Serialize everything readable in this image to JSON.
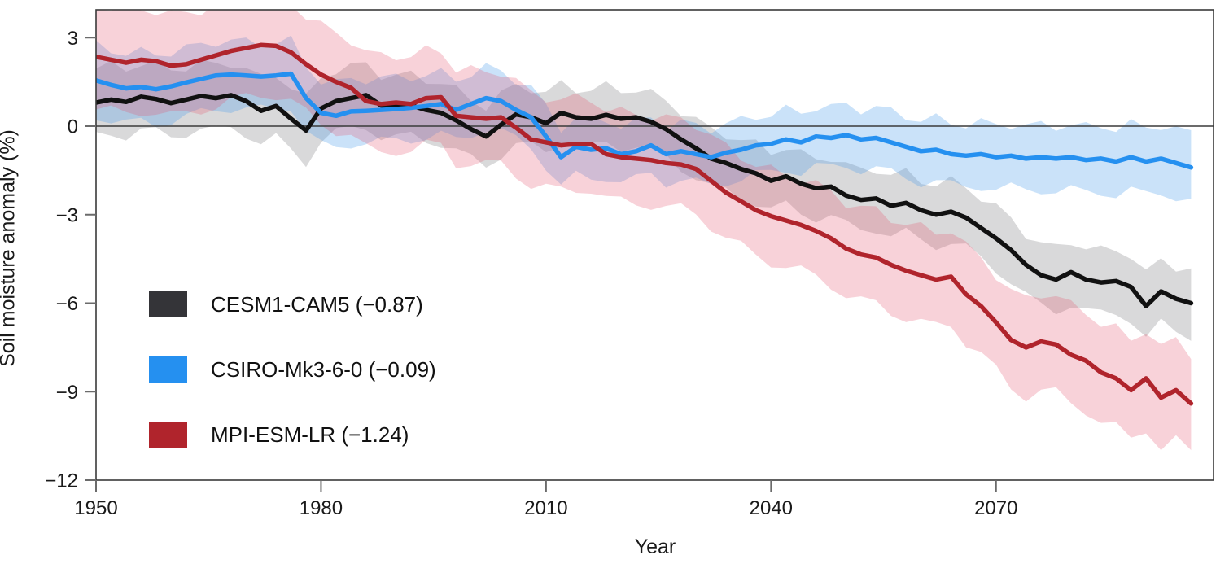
{
  "chart_data": {
    "type": "line",
    "title": "",
    "xlabel": "Year",
    "ylabel": "Soil moisture anomaly (%)",
    "grid": false,
    "zero_line": true,
    "legend_position": "lower-left",
    "x_range": [
      1950,
      2099
    ],
    "y_range": [
      -12,
      3.95
    ],
    "x_ticks": [
      {
        "v": 1950,
        "label": "1950"
      },
      {
        "v": 1980,
        "label": "1980"
      },
      {
        "v": 2010,
        "label": "2010"
      },
      {
        "v": 2040,
        "label": "2040"
      },
      {
        "v": 2070,
        "label": "2070"
      }
    ],
    "y_ticks": [
      {
        "v": 3,
        "label": "3"
      },
      {
        "v": 0,
        "label": "0"
      },
      {
        "v": -3,
        "label": "−3"
      },
      {
        "v": -6,
        "label": "−6"
      },
      {
        "v": -9,
        "label": "−9"
      },
      {
        "v": -12,
        "label": "−12"
      }
    ],
    "years": [
      1950,
      1952,
      1954,
      1956,
      1958,
      1960,
      1962,
      1964,
      1966,
      1968,
      1970,
      1972,
      1974,
      1976,
      1978,
      1980,
      1982,
      1984,
      1986,
      1988,
      1990,
      1992,
      1994,
      1996,
      1998,
      2000,
      2002,
      2004,
      2006,
      2008,
      2010,
      2012,
      2014,
      2016,
      2018,
      2020,
      2022,
      2024,
      2026,
      2028,
      2030,
      2032,
      2034,
      2036,
      2038,
      2040,
      2042,
      2044,
      2046,
      2048,
      2050,
      2052,
      2054,
      2056,
      2058,
      2060,
      2062,
      2064,
      2066,
      2068,
      2070,
      2072,
      2074,
      2076,
      2078,
      2080,
      2082,
      2084,
      2086,
      2088,
      2090,
      2092,
      2094,
      2096
    ],
    "series": [
      {
        "name": "CESM1-CAM5",
        "label": "CESM1-CAM5 (−0.87)",
        "trend": -0.87,
        "line_color": "#111111",
        "swatch_color": "#343438",
        "band_color": "rgba(80,80,85,0.22)",
        "values": [
          0.8,
          0.9,
          0.82,
          1.0,
          0.92,
          0.78,
          0.9,
          1.02,
          0.95,
          1.05,
          0.85,
          0.52,
          0.68,
          0.25,
          -0.15,
          0.6,
          0.85,
          0.95,
          1.05,
          0.7,
          0.65,
          0.7,
          0.55,
          0.45,
          0.2,
          -0.1,
          -0.35,
          0.05,
          0.4,
          0.3,
          0.1,
          0.45,
          0.3,
          0.25,
          0.38,
          0.25,
          0.3,
          0.15,
          -0.1,
          -0.45,
          -0.75,
          -1.1,
          -1.25,
          -1.45,
          -1.6,
          -1.85,
          -1.7,
          -1.95,
          -2.1,
          -2.05,
          -2.35,
          -2.5,
          -2.45,
          -2.7,
          -2.6,
          -2.85,
          -3.0,
          -2.9,
          -3.1,
          -3.45,
          -3.8,
          -4.2,
          -4.7,
          -5.05,
          -5.2,
          -4.95,
          -5.2,
          -5.3,
          -5.25,
          -5.45,
          -6.1,
          -5.6,
          -5.85,
          -6.0
        ],
        "band": {
          "hw_start": 1.15,
          "hw_mid": 0.95,
          "hw_end": 1.1,
          "wiggle_amp": 0.18,
          "phase": 0
        }
      },
      {
        "name": "CSIRO-Mk3-6-0",
        "label": "CSIRO-Mk3-6-0 (−0.09)",
        "trend": -0.09,
        "line_color": "#2590f0",
        "swatch_color": "#2590f0",
        "band_color": "rgba(80,160,235,0.30)",
        "values": [
          1.55,
          1.4,
          1.28,
          1.33,
          1.25,
          1.35,
          1.48,
          1.6,
          1.72,
          1.75,
          1.72,
          1.68,
          1.72,
          1.78,
          0.95,
          0.45,
          0.35,
          0.5,
          0.52,
          0.55,
          0.58,
          0.62,
          0.68,
          0.75,
          0.55,
          0.75,
          0.95,
          0.85,
          0.55,
          0.3,
          -0.35,
          -1.05,
          -0.7,
          -0.8,
          -0.75,
          -0.95,
          -0.85,
          -0.65,
          -0.95,
          -0.85,
          -0.95,
          -1.05,
          -0.9,
          -0.8,
          -0.65,
          -0.6,
          -0.45,
          -0.55,
          -0.35,
          -0.4,
          -0.3,
          -0.45,
          -0.4,
          -0.55,
          -0.7,
          -0.85,
          -0.8,
          -0.95,
          -1.0,
          -0.95,
          -1.05,
          -1.0,
          -1.1,
          -1.05,
          -1.1,
          -1.05,
          -1.15,
          -1.1,
          -1.2,
          -1.05,
          -1.2,
          -1.1,
          -1.25,
          -1.4
        ],
        "band": {
          "hw_start": 1.2,
          "hw_mid": 0.95,
          "hw_end": 1.15,
          "wiggle_amp": 0.18,
          "phase": 2
        }
      },
      {
        "name": "MPI-ESM-LR",
        "label": "MPI-ESM-LR (−1.24)",
        "trend": -1.24,
        "line_color": "#b0242c",
        "swatch_color": "#b0242c",
        "band_color": "rgba(228,80,110,0.26)",
        "values": [
          2.35,
          2.25,
          2.15,
          2.25,
          2.2,
          2.05,
          2.1,
          2.25,
          2.4,
          2.55,
          2.65,
          2.75,
          2.72,
          2.5,
          2.1,
          1.75,
          1.5,
          1.3,
          0.85,
          0.75,
          0.8,
          0.75,
          0.95,
          0.98,
          0.35,
          0.3,
          0.25,
          0.3,
          -0.05,
          -0.45,
          -0.55,
          -0.65,
          -0.6,
          -0.6,
          -0.95,
          -1.05,
          -1.1,
          -1.15,
          -1.25,
          -1.3,
          -1.45,
          -1.85,
          -2.25,
          -2.55,
          -2.85,
          -3.05,
          -3.2,
          -3.35,
          -3.55,
          -3.8,
          -4.15,
          -4.35,
          -4.45,
          -4.7,
          -4.9,
          -5.05,
          -5.2,
          -5.1,
          -5.7,
          -6.1,
          -6.65,
          -7.25,
          -7.5,
          -7.3,
          -7.4,
          -7.75,
          -7.95,
          -8.35,
          -8.55,
          -8.95,
          -8.55,
          -9.2,
          -8.95,
          -9.4
        ],
        "band": {
          "hw_start": 1.75,
          "hw_mid": 1.5,
          "hw_end": 1.7,
          "wiggle_amp": 0.2,
          "phase": 4
        }
      }
    ],
    "style": {
      "spine_color": "#3a3a3a",
      "zero_line_color": "#3a3a3a",
      "tick_color": "#6b6b6b",
      "tick_label_color": "#1a1a1a"
    }
  }
}
